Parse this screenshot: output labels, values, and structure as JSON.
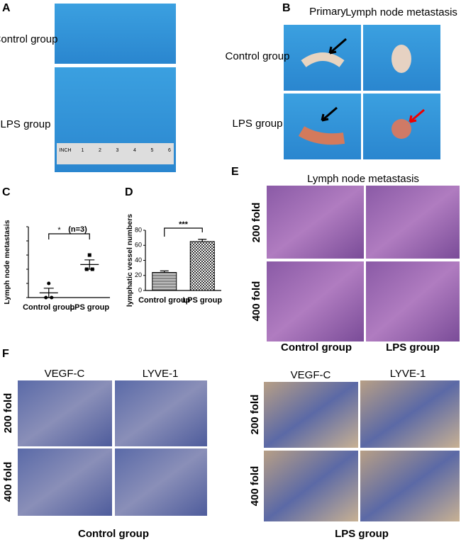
{
  "panels": {
    "A": {
      "label": "A",
      "rows": [
        "Control group",
        "LPS group"
      ],
      "ruler": [
        "INCH",
        "1",
        "2",
        "3",
        "4",
        "5",
        "6"
      ]
    },
    "B": {
      "label": "B",
      "columns": [
        "Primary",
        "Lymph node metastasis"
      ],
      "rows": [
        "Control group",
        "LPS group"
      ]
    },
    "E": {
      "label": "E",
      "title": "Lymph node metastasis",
      "rows": [
        "200 fold",
        "400 fold"
      ],
      "columns": [
        "Control group",
        "LPS group"
      ]
    },
    "F": {
      "label": "F",
      "left": {
        "columns": [
          "VEGF-C",
          "LYVE-1"
        ],
        "rows": [
          "200 fold",
          "400 fold"
        ],
        "caption": "Control group"
      },
      "right": {
        "columns": [
          "VEGF-C",
          "LYVE-1"
        ],
        "rows": [
          "200 fold",
          "400 fold"
        ],
        "caption": "LPS group"
      }
    }
  },
  "chart_data": [
    {
      "type": "dot",
      "panel_label": "C",
      "ylabel": "Lymph node metastasis",
      "categories": [
        "Control group",
        "LPS group"
      ],
      "values": [
        [
          1,
          0,
          0
        ],
        [
          3,
          2,
          2
        ]
      ],
      "means": [
        0.33,
        2.33
      ],
      "errors": [
        0.33,
        0.33
      ],
      "ylim": [
        0,
        5
      ],
      "yticks": [
        0,
        1,
        2,
        3,
        4,
        5
      ],
      "annotations": [
        "*",
        "(n=3)"
      ]
    },
    {
      "type": "bar",
      "panel_label": "D",
      "ylabel": "lymphatic vessel numbers",
      "categories": [
        "Control group",
        "LPS group"
      ],
      "values": [
        24,
        65
      ],
      "errors": [
        2,
        3
      ],
      "ylim": [
        0,
        80
      ],
      "yticks": [
        0,
        20,
        40,
        60,
        80
      ],
      "annotation": "***"
    }
  ]
}
